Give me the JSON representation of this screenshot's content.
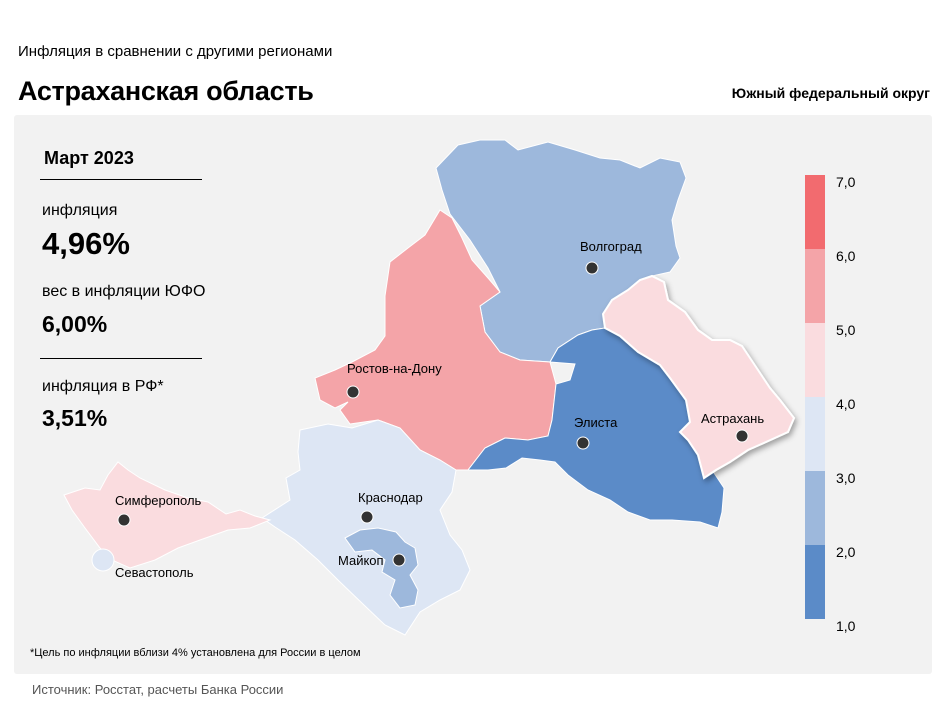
{
  "header": {
    "subtitle": "Инфляция  в сравнении  с другими  регионами",
    "title": "Астраханская область",
    "district": "Южный федеральный округ"
  },
  "stats": {
    "period": "Март 2023",
    "inflation_label": "инфляция",
    "inflation_value": "4,96%",
    "weight_label": "вес в инфляции  ЮФО",
    "weight_value": "6,00%",
    "russia_label": "инфляция  в РФ*",
    "russia_value": "3,51%"
  },
  "map": {
    "cities": {
      "volgograd": "Волгоград",
      "rostov": "Ростов-на-Дону",
      "elista": "Элиста",
      "astrakhan": "Астрахань",
      "simferopol": "Симферополь",
      "sevastopol": "Севастополь",
      "krasnodar": "Краснодар",
      "maikop": "Майкоп"
    },
    "region_colors": {
      "volgograd": "#9db8dc",
      "rostov": "#f4a4a8",
      "kalmykia": "#5b8bc8",
      "astrakhan": "#fadcdf",
      "krasnodar": "#dde6f4",
      "adygea": "#9db8dc",
      "crimea": "#fadcdf",
      "sevastopol": "#dde6f4"
    }
  },
  "legend": {
    "ticks": [
      "7,0",
      "6,0",
      "5,0",
      "4,0",
      "3,0",
      "2,0",
      "1,0"
    ],
    "bins": [
      {
        "from": 6.0,
        "to": 7.0,
        "color": "#f26b6f"
      },
      {
        "from": 5.0,
        "to": 6.0,
        "color": "#f4a4a8"
      },
      {
        "from": 4.0,
        "to": 5.0,
        "color": "#fadcdf"
      },
      {
        "from": 3.0,
        "to": 4.0,
        "color": "#dde6f4"
      },
      {
        "from": 2.0,
        "to": 3.0,
        "color": "#9db8dc"
      },
      {
        "from": 1.0,
        "to": 2.0,
        "color": "#5b8bc8"
      }
    ]
  },
  "footnote": "*Цель по инфляции вблизи 4% установлена для России в целом",
  "source": "Источник: Росстат, расчеты Банка России"
}
